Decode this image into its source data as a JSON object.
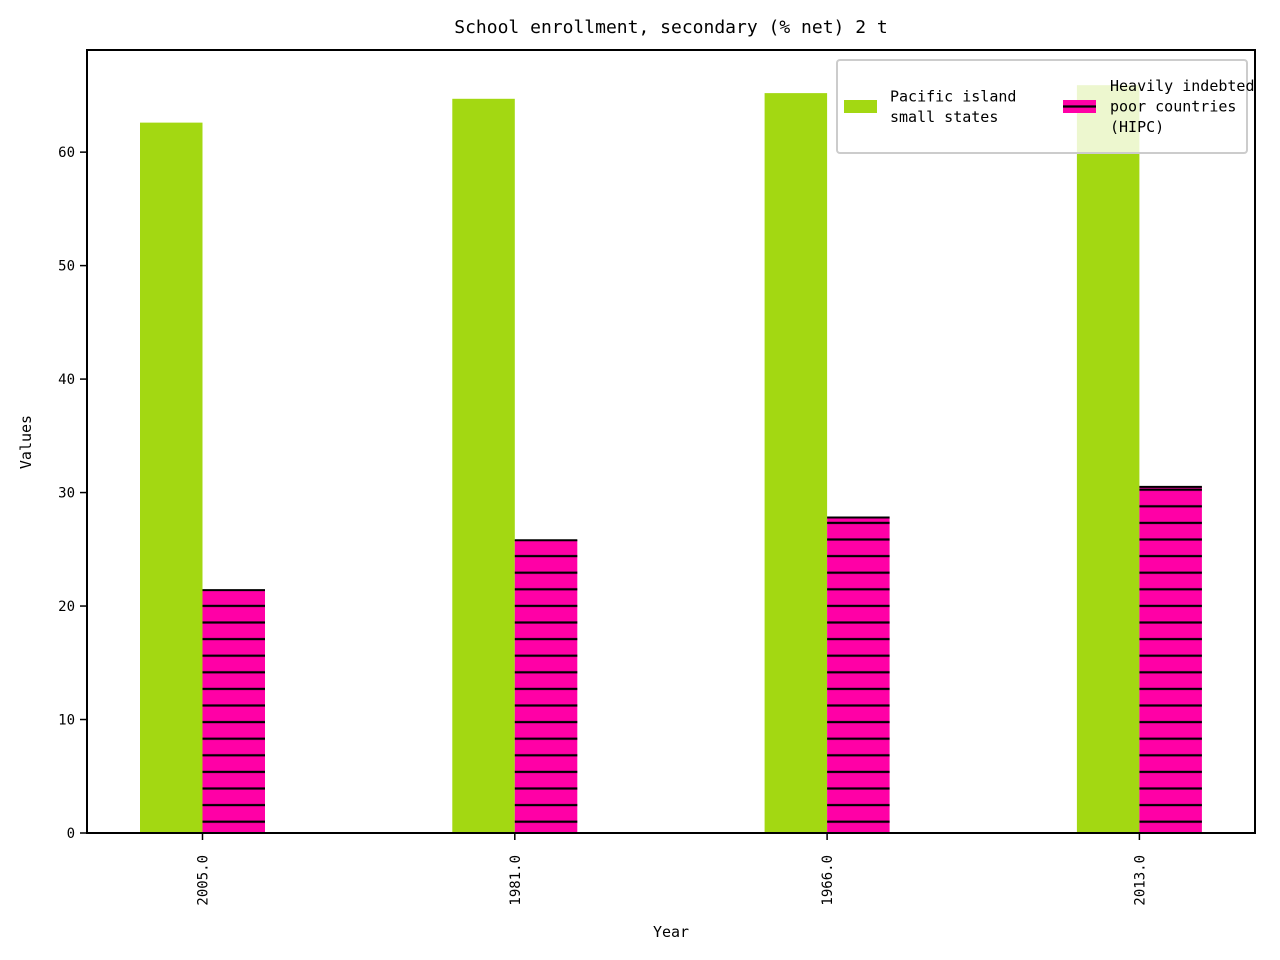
{
  "chart_data": {
    "type": "bar",
    "title": "School enrollment, secondary (% net) 2 t",
    "xlabel": "Year",
    "ylabel": "Values",
    "categories": [
      "2005.0",
      "1981.0",
      "1966.0",
      "2013.0"
    ],
    "series": [
      {
        "name": "Pacific island small states",
        "values": [
          62.6,
          64.7,
          65.2,
          65.9
        ],
        "color": "#a3d812",
        "hatch": "none"
      },
      {
        "name": "Heavily indebted poor countries (HIPC)",
        "values": [
          21.4,
          25.8,
          27.8,
          30.5
        ],
        "color": "#ff00a6",
        "hatch": "horizontal"
      }
    ],
    "ylim": [
      0,
      69
    ],
    "yticks": [
      0,
      10,
      20,
      30,
      40,
      50,
      60
    ],
    "grid": false,
    "legend_position": "top-right",
    "legend_columns": 2
  }
}
